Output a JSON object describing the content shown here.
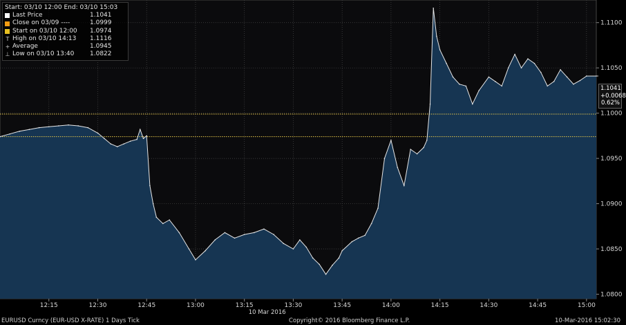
{
  "chart_data": {
    "type": "line",
    "title": "",
    "date_label": "10 Mar 2016",
    "ylim": [
      1.0795,
      1.1125
    ],
    "y_ticks": [
      "1.1100",
      "1.1050",
      "1.1000",
      "1.0950",
      "1.0900",
      "1.0850",
      "1.0800"
    ],
    "x_ticks": [
      "12:15",
      "12:30",
      "12:45",
      "13:00",
      "13:15",
      "13:30",
      "13:45",
      "14:00",
      "14:15",
      "14:30",
      "14:45",
      "15:00"
    ],
    "reference_lines": {
      "close_0309": 1.0999,
      "start_1200": 1.0974
    },
    "series": [
      {
        "values": [
          [
            "12:00",
            1.0974
          ],
          [
            "12:03",
            1.0977
          ],
          [
            "12:06",
            1.098
          ],
          [
            "12:09",
            1.0982
          ],
          [
            "12:12",
            1.0984
          ],
          [
            "12:15",
            1.0985
          ],
          [
            "12:18",
            1.0986
          ],
          [
            "12:21",
            1.0987
          ],
          [
            "12:24",
            1.0986
          ],
          [
            "12:27",
            1.0984
          ],
          [
            "12:30",
            1.0978
          ],
          [
            "12:32",
            1.0972
          ],
          [
            "12:34",
            1.0966
          ],
          [
            "12:36",
            1.0963
          ],
          [
            "12:38",
            1.0966
          ],
          [
            "12:40",
            1.0969
          ],
          [
            "12:42",
            1.0971
          ],
          [
            "12:43",
            1.0982
          ],
          [
            "12:44",
            1.0972
          ],
          [
            "12:45",
            1.0975
          ],
          [
            "12:46",
            1.092
          ],
          [
            "12:47",
            1.09
          ],
          [
            "12:48",
            1.0885
          ],
          [
            "12:50",
            1.0878
          ],
          [
            "12:52",
            1.0882
          ],
          [
            "12:55",
            1.0868
          ],
          [
            "12:58",
            1.085
          ],
          [
            "13:00",
            1.0838
          ],
          [
            "13:03",
            1.0848
          ],
          [
            "13:06",
            1.086
          ],
          [
            "13:09",
            1.0868
          ],
          [
            "13:12",
            1.0862
          ],
          [
            "13:15",
            1.0866
          ],
          [
            "13:18",
            1.0868
          ],
          [
            "13:21",
            1.0872
          ],
          [
            "13:24",
            1.0866
          ],
          [
            "13:27",
            1.0856
          ],
          [
            "13:30",
            1.085
          ],
          [
            "13:32",
            1.086
          ],
          [
            "13:34",
            1.0852
          ],
          [
            "13:36",
            1.084
          ],
          [
            "13:38",
            1.0833
          ],
          [
            "13:40",
            1.0822
          ],
          [
            "13:42",
            1.0832
          ],
          [
            "13:44",
            1.084
          ],
          [
            "13:45",
            1.0848
          ],
          [
            "13:48",
            1.0858
          ],
          [
            "13:50",
            1.0862
          ],
          [
            "13:52",
            1.0865
          ],
          [
            "13:54",
            1.0878
          ],
          [
            "13:56",
            1.0895
          ],
          [
            "13:58",
            1.095
          ],
          [
            "14:00",
            1.097
          ],
          [
            "14:02",
            1.094
          ],
          [
            "14:04",
            1.092
          ],
          [
            "14:06",
            1.096
          ],
          [
            "14:08",
            1.0955
          ],
          [
            "14:10",
            1.0962
          ],
          [
            "14:11",
            1.097
          ],
          [
            "14:12",
            1.101
          ],
          [
            "14:13",
            1.1116
          ],
          [
            "14:14",
            1.1085
          ],
          [
            "14:15",
            1.107
          ],
          [
            "14:17",
            1.1055
          ],
          [
            "14:19",
            1.104
          ],
          [
            "14:21",
            1.1032
          ],
          [
            "14:23",
            1.103
          ],
          [
            "14:25",
            1.101
          ],
          [
            "14:27",
            1.1025
          ],
          [
            "14:30",
            1.104
          ],
          [
            "14:32",
            1.1035
          ],
          [
            "14:34",
            1.103
          ],
          [
            "14:36",
            1.105
          ],
          [
            "14:38",
            1.1065
          ],
          [
            "14:40",
            1.105
          ],
          [
            "14:42",
            1.106
          ],
          [
            "14:44",
            1.1055
          ],
          [
            "14:46",
            1.1045
          ],
          [
            "14:48",
            1.103
          ],
          [
            "14:50",
            1.1035
          ],
          [
            "14:52",
            1.1048
          ],
          [
            "14:54",
            1.104
          ],
          [
            "14:56",
            1.1032
          ],
          [
            "14:58",
            1.1036
          ],
          [
            "15:00",
            1.1041
          ],
          [
            "15:03",
            1.1041
          ]
        ]
      }
    ],
    "last_price_badge": {
      "price": "1.1041",
      "change": "+0.0068",
      "pct": "0.62%"
    },
    "legend": {
      "header": "Start: 03/10 12:00 End: 03/10 15:03",
      "items": [
        {
          "label": "Last Price",
          "value": "1.1041",
          "swatch": "#ffffff",
          "symbol": ""
        },
        {
          "label": "Close on 03/09 ----",
          "value": "1.0999",
          "swatch": "#f39c12",
          "symbol": ""
        },
        {
          "label": "Start on 03/10 12:00",
          "value": "1.0974",
          "swatch": "#e8c020",
          "symbol": ""
        },
        {
          "label": "High on 03/10 14:13",
          "value": "1.1116",
          "swatch": "",
          "symbol": "T"
        },
        {
          "label": "Average",
          "value": "1.0945",
          "swatch": "",
          "symbol": "+"
        },
        {
          "label": "Low on 03/10 13:40",
          "value": "1.0822",
          "swatch": "",
          "symbol": "⊥"
        }
      ]
    }
  },
  "footer": {
    "left": "EURUSD Curncy (EUR-USD X-RATE) 1 Days  Tick",
    "center": "Copyright© 2016 Bloomberg Finance L.P.",
    "right": "10-Mar-2016 15:02:30"
  },
  "colors": {
    "fill": "#163552",
    "line": "#e6e6e6",
    "grid": "#4a4a4a",
    "close_line": "#e8c84a",
    "start_line": "#e8c84a"
  }
}
